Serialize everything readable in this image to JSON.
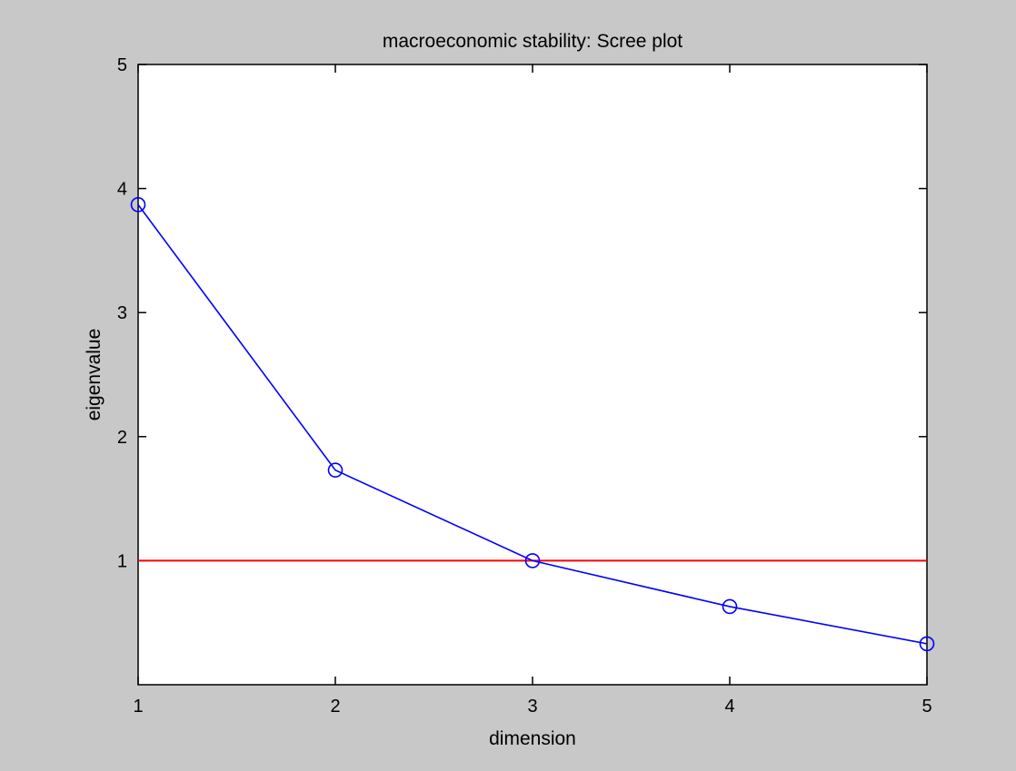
{
  "chart_data": {
    "type": "line",
    "title": "macroeconomic stability: Scree plot",
    "xlabel": "dimension",
    "ylabel": "eigenvalue",
    "xlim": [
      1,
      5
    ],
    "ylim": [
      0,
      5
    ],
    "xticks": [
      1,
      2,
      3,
      4,
      5
    ],
    "yticks": [
      1,
      2,
      3,
      4,
      5
    ],
    "grid": false,
    "series": [
      {
        "x": [
          1,
          2,
          3,
          4,
          5
        ],
        "values": [
          3.87,
          1.73,
          1.0,
          0.63,
          0.33
        ],
        "color": "#0000ff",
        "marker": "circle"
      }
    ],
    "reference_lines": [
      {
        "orientation": "horizontal",
        "y": 1,
        "color": "#ff0000"
      }
    ],
    "colors": {
      "figure_background": "#c8c8c8",
      "axes_background": "#ffffff",
      "axis": "#000000"
    }
  }
}
